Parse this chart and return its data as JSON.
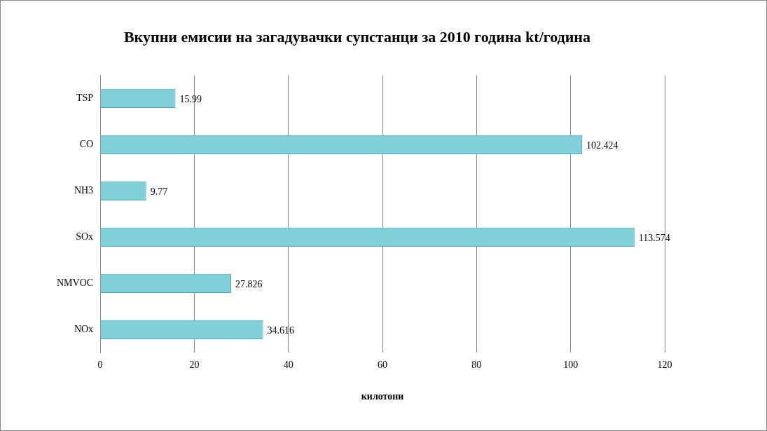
{
  "chart_data": {
    "type": "bar",
    "orientation": "horizontal",
    "title": "Вкупни емисии на загадувачки супстанци за 2010 година kt/година",
    "xlabel": "килотони",
    "categories": [
      "TSP",
      "CO",
      "NH3",
      "SOx",
      "NMVOC",
      "NOx"
    ],
    "values": [
      15.99,
      102.424,
      9.77,
      113.574,
      27.826,
      34.616
    ],
    "color": "#7fd0da",
    "xlim": [
      0,
      120
    ],
    "xticks": [
      0,
      20,
      40,
      60,
      80,
      100,
      120
    ],
    "grid": "x",
    "data_labels": true,
    "legend": false
  }
}
